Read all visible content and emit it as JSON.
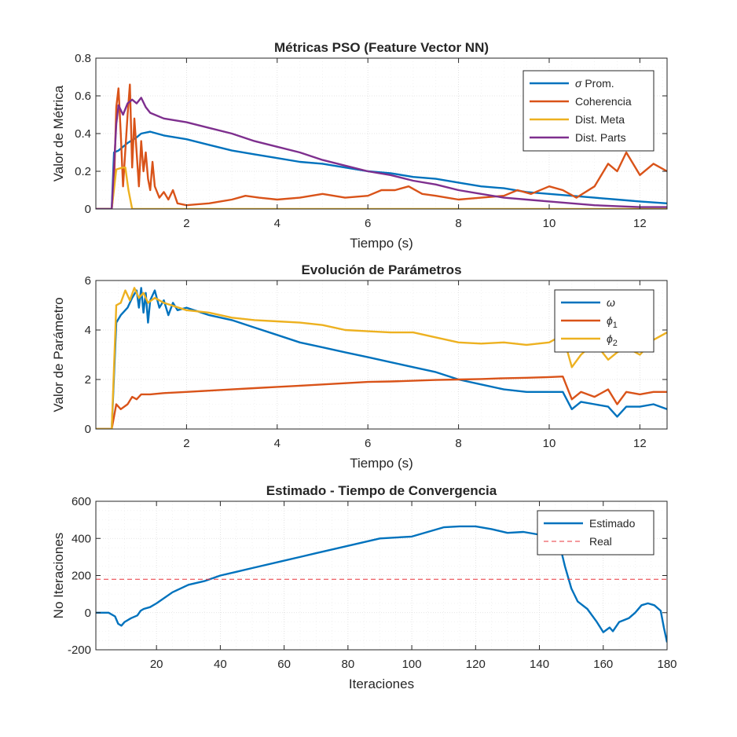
{
  "colors": {
    "blue": "#0072BD",
    "orange": "#D95319",
    "yellow": "#EDB120",
    "purple": "#7E2F8E",
    "red": "#E8353B",
    "axis": "#262626",
    "grid": "#DCDCDC"
  },
  "chart_data": [
    {
      "type": "line",
      "title": "Métricas PSO (Feature Vector NN)",
      "xlabel": "Tiempo (s)",
      "ylabel": "Valor de Métrica",
      "xlim": [
        0,
        12.6
      ],
      "ylim": [
        0,
        0.8
      ],
      "xticks": [
        2,
        4,
        6,
        8,
        10,
        12
      ],
      "yticks": [
        0,
        0.2,
        0.4,
        0.6,
        0.8
      ],
      "grid": true,
      "legend_position": "top-right",
      "series": [
        {
          "name": "σ Prom.",
          "color": "#0072BD",
          "x": [
            0,
            0.35,
            0.4,
            0.5,
            0.7,
            0.9,
            1.0,
            1.2,
            1.5,
            2,
            2.5,
            3,
            3.5,
            4,
            4.5,
            5,
            5.5,
            6,
            6.5,
            7,
            7.5,
            8,
            8.5,
            9,
            9.5,
            10,
            10.5,
            11,
            11.5,
            12,
            12.6
          ],
          "y": [
            0,
            0,
            0.3,
            0.31,
            0.35,
            0.38,
            0.4,
            0.41,
            0.39,
            0.37,
            0.34,
            0.31,
            0.29,
            0.27,
            0.25,
            0.24,
            0.22,
            0.2,
            0.19,
            0.17,
            0.16,
            0.14,
            0.12,
            0.11,
            0.09,
            0.08,
            0.07,
            0.06,
            0.05,
            0.04,
            0.03
          ]
        },
        {
          "name": "Coherencia",
          "color": "#D95319",
          "x": [
            0,
            0.35,
            0.4,
            0.45,
            0.5,
            0.55,
            0.6,
            0.7,
            0.75,
            0.8,
            0.85,
            0.9,
            0.95,
            1.0,
            1.05,
            1.1,
            1.15,
            1.2,
            1.25,
            1.3,
            1.4,
            1.5,
            1.6,
            1.7,
            1.8,
            2,
            2.5,
            3,
            3.3,
            3.6,
            4,
            4.5,
            5,
            5.5,
            6,
            6.3,
            6.6,
            6.9,
            7.2,
            7.5,
            8,
            8.5,
            9,
            9.3,
            9.6,
            10,
            10.3,
            10.6,
            11,
            11.3,
            11.5,
            11.7,
            12,
            12.3,
            12.6
          ],
          "y": [
            0,
            0,
            0.12,
            0.54,
            0.64,
            0.4,
            0.12,
            0.5,
            0.66,
            0.22,
            0.48,
            0.3,
            0.12,
            0.36,
            0.2,
            0.3,
            0.16,
            0.1,
            0.25,
            0.12,
            0.06,
            0.09,
            0.05,
            0.1,
            0.03,
            0.02,
            0.03,
            0.05,
            0.07,
            0.06,
            0.05,
            0.06,
            0.08,
            0.06,
            0.07,
            0.1,
            0.1,
            0.12,
            0.08,
            0.07,
            0.05,
            0.06,
            0.07,
            0.1,
            0.08,
            0.12,
            0.1,
            0.06,
            0.12,
            0.24,
            0.2,
            0.3,
            0.18,
            0.24,
            0.2
          ]
        },
        {
          "name": "Dist. Meta",
          "color": "#EDB120",
          "x": [
            0,
            0.35,
            0.45,
            0.6,
            0.65,
            0.72,
            0.8,
            12.6
          ],
          "y": [
            0,
            0,
            0.21,
            0.22,
            0.22,
            0.1,
            0.0,
            0.0
          ]
        },
        {
          "name": "Dist. Parts",
          "color": "#7E2F8E",
          "x": [
            0,
            0.35,
            0.45,
            0.5,
            0.6,
            0.7,
            0.8,
            0.9,
            1.0,
            1.1,
            1.2,
            1.5,
            2,
            2.5,
            3,
            3.5,
            4,
            4.5,
            5,
            5.5,
            6,
            6.5,
            7,
            7.5,
            8,
            8.5,
            9,
            9.5,
            10,
            10.5,
            11,
            11.5,
            12,
            12.6
          ],
          "y": [
            0,
            0,
            0.45,
            0.55,
            0.5,
            0.56,
            0.58,
            0.56,
            0.59,
            0.54,
            0.51,
            0.48,
            0.46,
            0.43,
            0.4,
            0.36,
            0.33,
            0.3,
            0.26,
            0.23,
            0.2,
            0.18,
            0.15,
            0.13,
            0.1,
            0.08,
            0.06,
            0.05,
            0.04,
            0.03,
            0.02,
            0.015,
            0.01,
            0.01
          ]
        }
      ]
    },
    {
      "type": "line",
      "title": "Evolución de Parámetros",
      "xlabel": "Tiempo (s)",
      "ylabel": "Valor de Parámetro",
      "xlim": [
        0,
        12.6
      ],
      "ylim": [
        0,
        6
      ],
      "xticks": [
        2,
        4,
        6,
        8,
        10,
        12
      ],
      "yticks": [
        0,
        2,
        4,
        6
      ],
      "grid": true,
      "legend_position": "top-right",
      "series": [
        {
          "name": "ω",
          "color": "#0072BD",
          "x": [
            0,
            0.35,
            0.45,
            0.55,
            0.7,
            0.8,
            0.9,
            0.95,
            1.0,
            1.05,
            1.1,
            1.15,
            1.2,
            1.3,
            1.4,
            1.5,
            1.6,
            1.7,
            1.8,
            2,
            2.5,
            3,
            3.5,
            4,
            4.5,
            5,
            5.5,
            6,
            6.5,
            7,
            7.5,
            8,
            8.5,
            9,
            9.5,
            10,
            10.3,
            10.5,
            10.7,
            11,
            11.3,
            11.5,
            11.7,
            12,
            12.3,
            12.6
          ],
          "y": [
            0,
            0,
            4.3,
            4.6,
            4.9,
            5.3,
            5.6,
            4.9,
            5.7,
            4.7,
            5.5,
            4.3,
            5.2,
            5.6,
            4.9,
            5.2,
            4.6,
            5.1,
            4.8,
            4.9,
            4.6,
            4.4,
            4.1,
            3.8,
            3.5,
            3.3,
            3.1,
            2.9,
            2.7,
            2.5,
            2.3,
            2.0,
            1.8,
            1.6,
            1.5,
            1.5,
            1.5,
            0.8,
            1.1,
            1.0,
            0.9,
            0.5,
            0.9,
            0.9,
            1.0,
            0.8
          ]
        },
        {
          "name": "ϕ1",
          "color": "#D95319",
          "x": [
            0,
            0.35,
            0.45,
            0.55,
            0.7,
            0.8,
            0.9,
            1.0,
            1.2,
            1.5,
            2,
            2.5,
            3,
            3.5,
            4,
            4.5,
            5,
            5.5,
            6,
            6.5,
            7,
            7.5,
            8,
            8.5,
            9,
            9.5,
            10,
            10.3,
            10.5,
            10.7,
            11,
            11.3,
            11.5,
            11.7,
            12,
            12.3,
            12.6
          ],
          "y": [
            0,
            0,
            1.0,
            0.8,
            1.0,
            1.3,
            1.2,
            1.4,
            1.4,
            1.45,
            1.5,
            1.55,
            1.6,
            1.65,
            1.7,
            1.75,
            1.8,
            1.85,
            1.9,
            1.92,
            1.95,
            1.98,
            2.0,
            2.02,
            2.05,
            2.07,
            2.1,
            2.12,
            1.2,
            1.5,
            1.3,
            1.6,
            1.0,
            1.5,
            1.4,
            1.5,
            1.5
          ]
        },
        {
          "name": "ϕ2",
          "color": "#EDB120",
          "x": [
            0,
            0.35,
            0.45,
            0.55,
            0.65,
            0.75,
            0.85,
            0.95,
            1.05,
            1.15,
            1.3,
            1.5,
            2,
            2.5,
            3,
            3.5,
            4,
            4.5,
            5,
            5.5,
            6,
            6.5,
            7,
            7.5,
            8,
            8.5,
            9,
            9.5,
            10,
            10.3,
            10.5,
            10.7,
            11,
            11.3,
            11.5,
            11.7,
            12,
            12.3,
            12.6
          ],
          "y": [
            0,
            0,
            5.0,
            5.1,
            5.6,
            5.2,
            5.7,
            5.3,
            5.5,
            5.1,
            5.3,
            5.1,
            4.8,
            4.7,
            4.5,
            4.4,
            4.35,
            4.3,
            4.2,
            4.0,
            3.95,
            3.9,
            3.9,
            3.7,
            3.5,
            3.45,
            3.5,
            3.4,
            3.5,
            3.8,
            2.5,
            3.0,
            3.5,
            2.8,
            3.1,
            3.3,
            3.0,
            3.6,
            3.9
          ]
        }
      ]
    },
    {
      "type": "line",
      "title": "Estimado - Tiempo de Convergencia",
      "xlabel": "Iteraciones",
      "ylabel": "No Iteraciones",
      "xlim": [
        1,
        180
      ],
      "ylim": [
        -200,
        600
      ],
      "xticks": [
        20,
        40,
        60,
        80,
        100,
        120,
        140,
        160,
        180
      ],
      "yticks": [
        -200,
        0,
        200,
        400,
        600
      ],
      "grid": true,
      "legend_position": "top-right",
      "series": [
        {
          "name": "Estimado",
          "color": "#0072BD",
          "style": "solid",
          "x": [
            1,
            5,
            7,
            8,
            9,
            10,
            12,
            14,
            15,
            16,
            18,
            20,
            25,
            30,
            35,
            40,
            45,
            50,
            60,
            70,
            80,
            90,
            100,
            110,
            115,
            120,
            125,
            130,
            135,
            140,
            142,
            144,
            146,
            147,
            148,
            150,
            152,
            155,
            158,
            160,
            162,
            163,
            165,
            168,
            170,
            172,
            174,
            176,
            178,
            179,
            180
          ],
          "y": [
            0,
            0,
            -20,
            -60,
            -70,
            -50,
            -30,
            -15,
            10,
            20,
            30,
            50,
            110,
            150,
            170,
            200,
            220,
            240,
            280,
            320,
            360,
            400,
            410,
            460,
            465,
            465,
            450,
            430,
            435,
            420,
            410,
            415,
            380,
            320,
            250,
            130,
            60,
            20,
            -50,
            -105,
            -80,
            -100,
            -50,
            -30,
            0,
            40,
            50,
            40,
            10,
            -80,
            -160
          ]
        },
        {
          "name": "Real",
          "color": "#E8353B",
          "style": "dashed",
          "x": [
            1,
            180
          ],
          "y": [
            180,
            180
          ]
        }
      ]
    }
  ]
}
